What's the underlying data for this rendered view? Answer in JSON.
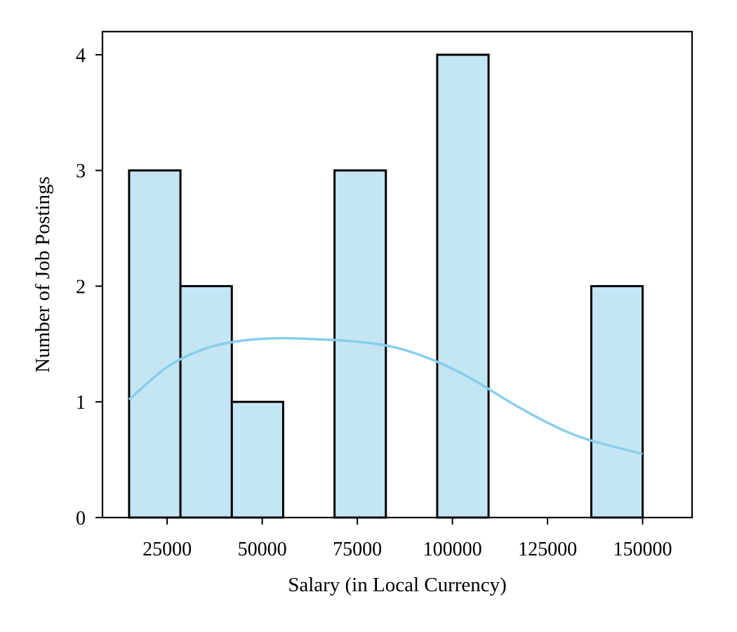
{
  "chart_data": {
    "type": "bar",
    "title": "",
    "xlabel": "Salary (in Local Currency)",
    "ylabel": "Number of Job Postings",
    "xlim": [
      8000,
      163000
    ],
    "ylim": [
      0,
      4.2
    ],
    "x_ticks": [
      25000,
      50000,
      75000,
      100000,
      125000,
      150000
    ],
    "y_ticks": [
      0,
      1,
      2,
      3,
      4
    ],
    "bins": [
      {
        "start": 15000,
        "end": 28500,
        "count": 3
      },
      {
        "start": 28500,
        "end": 42000,
        "count": 2
      },
      {
        "start": 42000,
        "end": 55500,
        "count": 1
      },
      {
        "start": 55500,
        "end": 69000,
        "count": 0
      },
      {
        "start": 69000,
        "end": 82500,
        "count": 3
      },
      {
        "start": 82500,
        "end": 96000,
        "count": 0
      },
      {
        "start": 96000,
        "end": 109500,
        "count": 4
      },
      {
        "start": 109500,
        "end": 123000,
        "count": 0
      },
      {
        "start": 123000,
        "end": 136500,
        "count": 0
      },
      {
        "start": 136500,
        "end": 150000,
        "count": 2
      }
    ],
    "kde": {
      "x": [
        15000,
        25000,
        35000,
        45000,
        55000,
        65000,
        75000,
        85000,
        95000,
        105000,
        115000,
        125000,
        135000,
        150000
      ],
      "y": [
        1.02,
        1.3,
        1.46,
        1.53,
        1.55,
        1.54,
        1.52,
        1.47,
        1.36,
        1.2,
        1.0,
        0.82,
        0.68,
        0.55
      ]
    },
    "grid": false,
    "colors": {
      "bar_fill": "#c3e5f4",
      "bar_edge": "#000000",
      "kde_line": "#87ceeb"
    }
  }
}
